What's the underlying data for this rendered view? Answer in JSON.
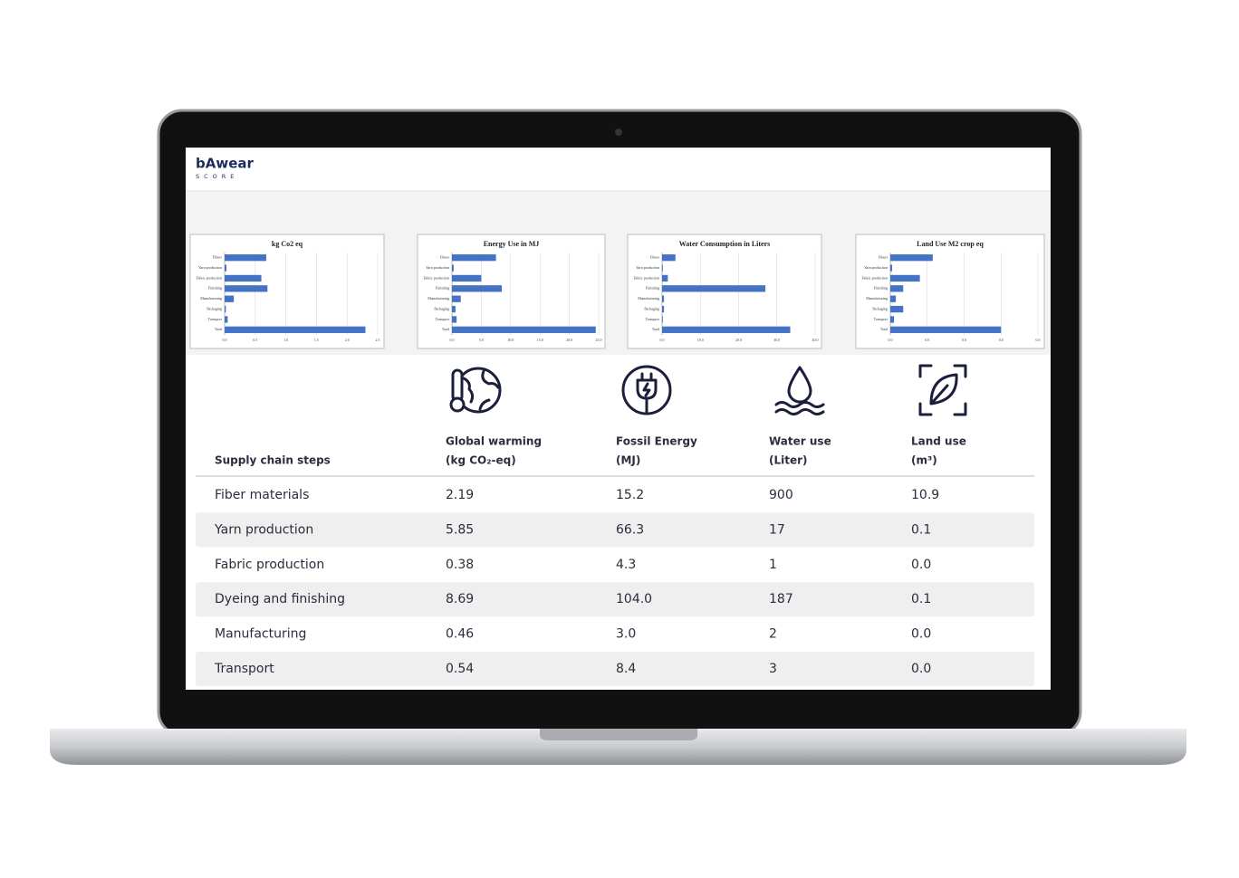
{
  "header": {
    "logo": "bAwear",
    "logo_sub": "SCORE"
  },
  "chart_data": [
    {
      "type": "bar",
      "orientation": "horizontal",
      "title": "kg Co2 eq",
      "color": "#4472c4",
      "grid": true,
      "categories": [
        "Fibers",
        "Yarn production",
        "Fabric production",
        "Finishing",
        "Manufacturing",
        "Packaging",
        "Transport",
        "Total"
      ],
      "values": [
        0.68,
        0.03,
        0.6,
        0.7,
        0.15,
        0.02,
        0.05,
        2.3
      ],
      "xlim": [
        0,
        2.5
      ],
      "xticks": [
        {
          "value": 0,
          "label": "0.0"
        },
        0.5,
        {
          "value": 1,
          "label": "1.0"
        },
        1.5,
        {
          "value": 2,
          "label": "2.0"
        },
        2.5
      ]
    },
    {
      "type": "bar",
      "orientation": "horizontal",
      "title": "Energy Use in MJ",
      "color": "#4472c4",
      "grid": true,
      "categories": [
        "Fibers",
        "Yarn production",
        "Fabric production",
        "Finishing",
        "Manufacturing",
        "Packaging",
        "Transport",
        "Total"
      ],
      "values": [
        7.5,
        0.3,
        5,
        8.5,
        1.5,
        0.6,
        0.8,
        24.5
      ],
      "xlim": [
        0,
        25
      ],
      "xticks": [
        {
          "value": 0,
          "label": "0.0"
        },
        {
          "value": 5,
          "label": "5.0"
        },
        {
          "value": 10,
          "label": "10.0"
        },
        {
          "value": 15,
          "label": "15.0"
        },
        {
          "value": 20,
          "label": "20.0"
        },
        {
          "value": 25,
          "label": "25.0"
        }
      ]
    },
    {
      "type": "bar",
      "orientation": "horizontal",
      "title": "Water Consumption in Liters",
      "color": "#4472c4",
      "grid": true,
      "categories": [
        "Fibers",
        "Yarn production",
        "Fabric production",
        "Finishing",
        "Manufacturing",
        "Packaging",
        "Transport",
        "Total"
      ],
      "values": [
        3.5,
        0.2,
        1.5,
        27,
        0.5,
        0.5,
        0.2,
        33.5
      ],
      "xlim": [
        0,
        40
      ],
      "xticks": [
        {
          "value": 0,
          "label": "0.0"
        },
        {
          "value": 10,
          "label": "10.0"
        },
        {
          "value": 20,
          "label": "20.0"
        },
        {
          "value": 30,
          "label": "30.0"
        },
        {
          "value": 40,
          "label": "40.0"
        }
      ]
    },
    {
      "type": "bar",
      "orientation": "horizontal",
      "title": "Land Use M2 crop eq",
      "color": "#4472c4",
      "grid": true,
      "categories": [
        "Fibers",
        "Yarn production",
        "Fabric production",
        "Finishing",
        "Manufacturing",
        "Packaging",
        "Transport",
        "Total"
      ],
      "values": [
        0.023,
        0.001,
        0.016,
        0.007,
        0.003,
        0.007,
        0.002,
        0.06
      ],
      "xlim": [
        0,
        0.08
      ],
      "xticks": [
        {
          "value": 0,
          "label": "0.0"
        },
        {
          "value": 0.02,
          "label": "0.0"
        },
        {
          "value": 0.04,
          "label": "0.0"
        },
        {
          "value": 0.06,
          "label": "0.0"
        },
        {
          "value": 0.08,
          "label": "0.0"
        }
      ]
    }
  ],
  "table": {
    "columns": [
      {
        "name": "Supply chain steps"
      },
      {
        "name": "Global warming",
        "unit": "(kg CO₂-eq)"
      },
      {
        "name": "Fossil Energy",
        "unit": "(MJ)"
      },
      {
        "name": "Water use",
        "unit": "(Liter)"
      },
      {
        "name": "Land use",
        "unit": "(m³)"
      }
    ],
    "rows": [
      [
        "Fiber materials",
        "2.19",
        "15.2",
        "900",
        "10.9"
      ],
      [
        "Yarn production",
        "5.85",
        "66.3",
        "17",
        "0.1"
      ],
      [
        "Fabric production",
        "0.38",
        "4.3",
        "1",
        "0.0"
      ],
      [
        "Dyeing and finishing",
        "8.69",
        "104.0",
        "187",
        "0.1"
      ],
      [
        "Manufacturing",
        "0.46",
        "3.0",
        "2",
        "0.0"
      ],
      [
        "Transport",
        "0.54",
        "8.4",
        "3",
        "0.0"
      ]
    ]
  }
}
